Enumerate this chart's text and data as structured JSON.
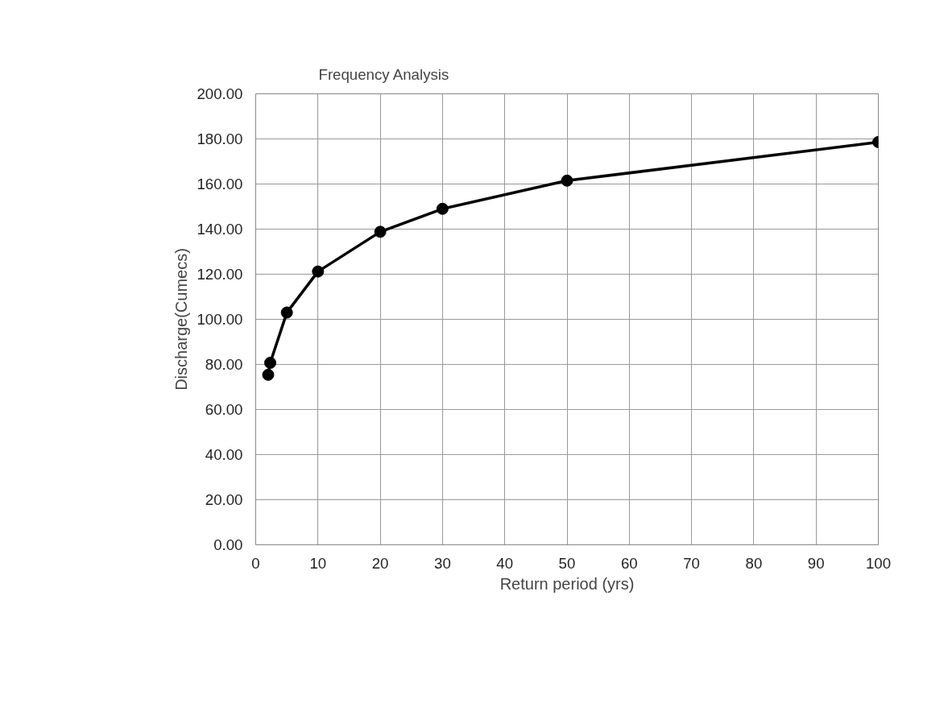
{
  "chart_data": {
    "type": "line",
    "title": "Frequency Analysis",
    "xlabel": "Return period (yrs)",
    "ylabel": "Discharge(Cumecs)",
    "x": [
      2,
      2.33,
      5,
      10,
      20,
      30,
      50,
      100
    ],
    "series": [
      {
        "color": "#000000",
        "values": [
          75.4,
          80.7,
          103.0,
          121.2,
          138.8,
          149.0,
          161.5,
          178.6
        ]
      }
    ],
    "xlim": [
      0,
      100
    ],
    "xticks": [
      0,
      10,
      20,
      30,
      40,
      50,
      60,
      70,
      80,
      90,
      100
    ],
    "ylim": [
      0,
      200
    ],
    "yticks": [
      {
        "value": 0,
        "label": "0.00"
      },
      {
        "value": 20,
        "label": "20.00"
      },
      {
        "value": 40,
        "label": "40.00"
      },
      {
        "value": 60,
        "label": "60.00"
      },
      {
        "value": 80,
        "label": "80.00"
      },
      {
        "value": 100,
        "label": "100.00"
      },
      {
        "value": 120,
        "label": "120.00"
      },
      {
        "value": 140,
        "label": "140.00"
      },
      {
        "value": 160,
        "label": "160.00"
      },
      {
        "value": 180,
        "label": "180.00"
      },
      {
        "value": 200,
        "label": "200.00"
      }
    ],
    "grid": true,
    "marker": "circle",
    "line_style": "solid"
  }
}
